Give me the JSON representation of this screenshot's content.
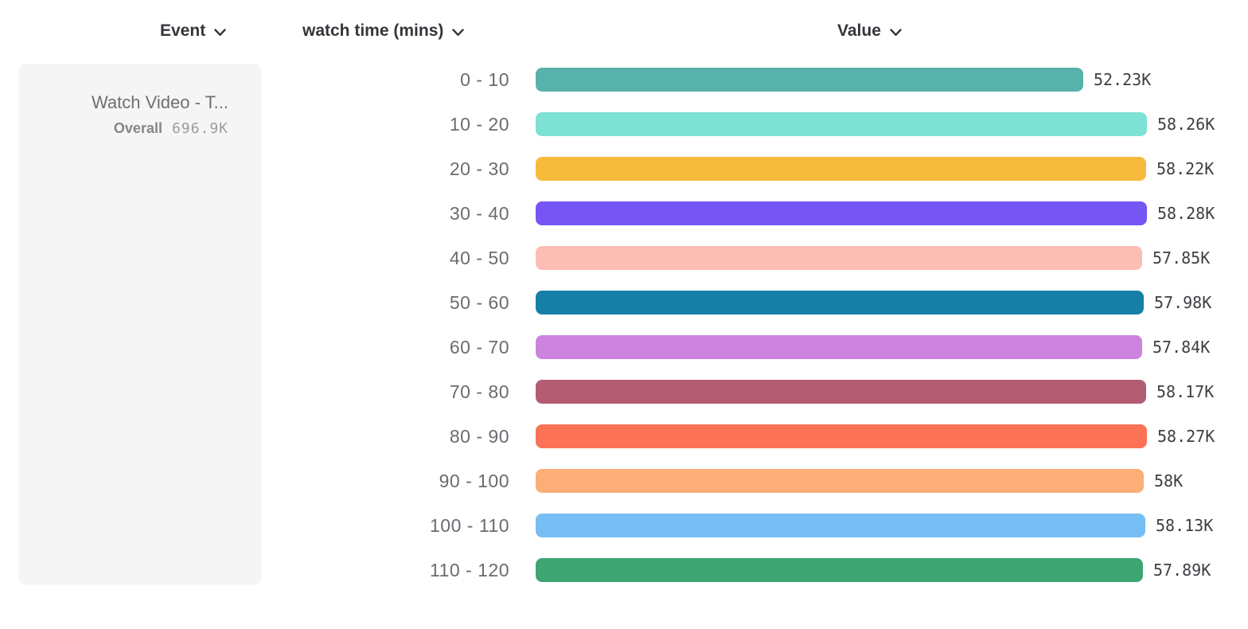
{
  "header": {
    "columns": [
      {
        "label": "Event",
        "icon": "chevron-down-icon"
      },
      {
        "label": "watch time (mins)",
        "icon": "chevron-down-icon"
      },
      {
        "label": "Value",
        "icon": "chevron-down-icon"
      }
    ]
  },
  "event_card": {
    "title": "Watch Video - T...",
    "overall_label": "Overall",
    "overall_value": "696.9K"
  },
  "chart_data": {
    "type": "bar",
    "orientation": "horizontal",
    "title": "",
    "xlabel": "Value",
    "ylabel": "watch time (mins)",
    "xlim": [
      0,
      58.28
    ],
    "grid": false,
    "legend": false,
    "categories": [
      "0 - 10",
      "10 - 20",
      "20 - 30",
      "30 - 40",
      "40 - 50",
      "50 - 60",
      "60 - 70",
      "70 - 80",
      "80 - 90",
      "90 - 100",
      "100 - 110",
      "110 - 120"
    ],
    "values": [
      52.23,
      58.26,
      58.22,
      58.28,
      57.85,
      57.98,
      57.84,
      58.17,
      58.27,
      58.0,
      58.13,
      57.89
    ],
    "value_labels": [
      "52.23K",
      "58.26K",
      "58.22K",
      "58.28K",
      "57.85K",
      "57.98K",
      "57.84K",
      "58.17K",
      "58.27K",
      "58K",
      "58.13K",
      "57.89K"
    ],
    "colors": [
      "#57B2AB",
      "#7DE1D3",
      "#F6BB3C",
      "#7655F5",
      "#FCBDB4",
      "#177FA6",
      "#CB83DE",
      "#B35C72",
      "#FC7256",
      "#FCAE79",
      "#77BEF4",
      "#3EA572"
    ]
  }
}
